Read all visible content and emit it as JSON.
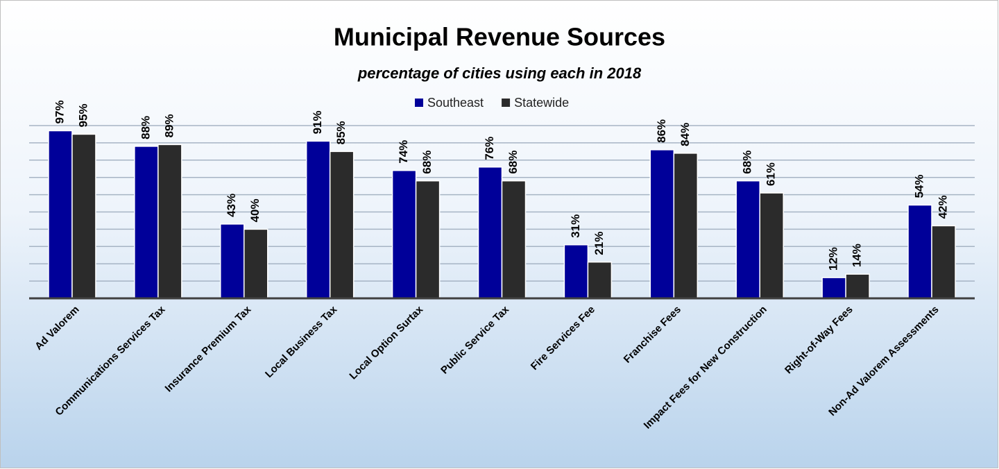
{
  "chart_data": {
    "type": "bar",
    "title": "Municipal Revenue Sources",
    "subtitle": "percentage of cities using each in 2018",
    "categories": [
      "Ad Valorem",
      "Communications Services Tax",
      "Insurance Premium Tax",
      "Local Business Tax",
      "Local Option Surtax",
      "Public Service Tax",
      "Fire Services Fee",
      "Franchise Fees",
      "Impact Fees for New Construction",
      "Right-of-Way Fees",
      "Non-Ad Valorem Assessments"
    ],
    "series": [
      {
        "name": "Southeast",
        "color": "#000099",
        "values": [
          97,
          88,
          43,
          91,
          74,
          76,
          31,
          86,
          68,
          12,
          54
        ],
        "value_labels": [
          "97%",
          "88%",
          "43%",
          "91%",
          "74%",
          "76%",
          "31%",
          "86%",
          "68%",
          "12%",
          "54%"
        ]
      },
      {
        "name": "Statewide",
        "color": "#2b2b2b",
        "values": [
          95,
          89,
          40,
          85,
          68,
          68,
          21,
          84,
          61,
          14,
          42
        ],
        "value_labels": [
          "95%",
          "89%",
          "40%",
          "85%",
          "68%",
          "68%",
          "21%",
          "84%",
          "61%",
          "14%",
          "42%"
        ]
      }
    ],
    "ylim": [
      0,
      100
    ],
    "yticks": [
      0,
      10,
      20,
      30,
      40,
      50,
      60,
      70,
      80,
      90,
      100
    ],
    "grid": true,
    "legend": "top"
  }
}
